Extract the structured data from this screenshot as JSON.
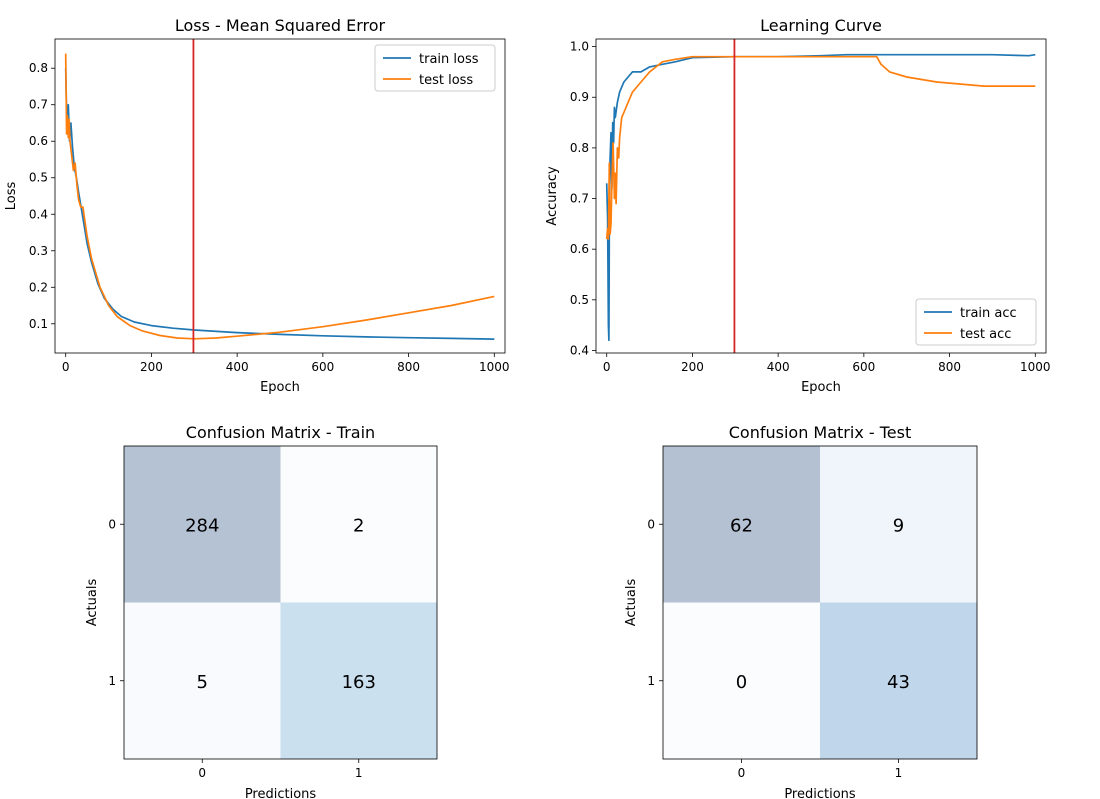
{
  "chart_data": [
    {
      "id": "loss",
      "type": "line",
      "title": "Loss - Mean Squared Error",
      "xlabel": "Epoch",
      "ylabel": "Loss",
      "xlim": [
        -25,
        1025
      ],
      "ylim": [
        0.02,
        0.88
      ],
      "xticks": [
        0,
        200,
        400,
        600,
        800,
        1000
      ],
      "yticks": [
        0.1,
        0.2,
        0.3,
        0.4,
        0.5,
        0.6,
        0.7,
        0.8
      ],
      "grid": false,
      "legend": "upper right",
      "vline": {
        "x": 298,
        "color": "#d62728"
      },
      "series": [
        {
          "name": "train loss",
          "color": "#1f77b4",
          "x": [
            0,
            3,
            6,
            9,
            12,
            16,
            20,
            25,
            30,
            40,
            50,
            60,
            75,
            90,
            110,
            130,
            160,
            200,
            250,
            300,
            400,
            500,
            600,
            700,
            800,
            900,
            1000
          ],
          "y": [
            0.8,
            0.62,
            0.7,
            0.6,
            0.65,
            0.58,
            0.53,
            0.5,
            0.46,
            0.39,
            0.32,
            0.27,
            0.21,
            0.17,
            0.14,
            0.12,
            0.105,
            0.095,
            0.088,
            0.083,
            0.076,
            0.071,
            0.067,
            0.064,
            0.062,
            0.06,
            0.058
          ]
        },
        {
          "name": "test loss",
          "color": "#ff7f0e",
          "x": [
            0,
            2,
            4,
            6,
            8,
            10,
            14,
            18,
            22,
            26,
            30,
            35,
            40,
            50,
            60,
            70,
            80,
            100,
            120,
            150,
            180,
            220,
            260,
            300,
            350,
            400,
            500,
            600,
            700,
            800,
            900,
            1000
          ],
          "y": [
            0.84,
            0.62,
            0.67,
            0.61,
            0.66,
            0.6,
            0.56,
            0.52,
            0.54,
            0.48,
            0.44,
            0.42,
            0.42,
            0.34,
            0.28,
            0.24,
            0.2,
            0.15,
            0.12,
            0.095,
            0.08,
            0.068,
            0.061,
            0.059,
            0.061,
            0.066,
            0.077,
            0.092,
            0.11,
            0.13,
            0.15,
            0.175
          ]
        }
      ]
    },
    {
      "id": "acc",
      "type": "line",
      "title": "Learning Curve",
      "xlabel": "Epoch",
      "ylabel": "Accuracy",
      "xlim": [
        -25,
        1025
      ],
      "ylim": [
        0.395,
        1.015
      ],
      "xticks": [
        0,
        200,
        400,
        600,
        800,
        1000
      ],
      "yticks": [
        0.4,
        0.5,
        0.6,
        0.7,
        0.8,
        0.9,
        1.0
      ],
      "grid": false,
      "legend": "lower right",
      "vline": {
        "x": 298,
        "color": "#d62728"
      },
      "series": [
        {
          "name": "train acc",
          "color": "#1f77b4",
          "x": [
            0,
            2,
            4,
            5,
            6,
            8,
            10,
            12,
            14,
            16,
            18,
            20,
            25,
            30,
            35,
            40,
            50,
            60,
            80,
            100,
            130,
            160,
            200,
            300,
            400,
            500,
            560,
            700,
            800,
            900,
            985,
            1000
          ],
          "y": [
            0.73,
            0.66,
            0.45,
            0.42,
            0.62,
            0.78,
            0.83,
            0.72,
            0.85,
            0.81,
            0.88,
            0.86,
            0.89,
            0.91,
            0.92,
            0.93,
            0.94,
            0.95,
            0.95,
            0.96,
            0.965,
            0.97,
            0.978,
            0.98,
            0.98,
            0.982,
            0.984,
            0.984,
            0.984,
            0.984,
            0.982,
            0.984
          ]
        },
        {
          "name": "test acc",
          "color": "#ff7f0e",
          "x": [
            0,
            2,
            4,
            6,
            8,
            10,
            12,
            15,
            18,
            20,
            22,
            25,
            28,
            30,
            35,
            40,
            50,
            60,
            80,
            100,
            130,
            160,
            200,
            300,
            400,
            500,
            600,
            630,
            640,
            660,
            700,
            770,
            880,
            1000
          ],
          "y": [
            0.62,
            0.64,
            0.62,
            0.77,
            0.63,
            0.65,
            0.73,
            0.81,
            0.7,
            0.75,
            0.69,
            0.8,
            0.78,
            0.82,
            0.86,
            0.87,
            0.89,
            0.91,
            0.93,
            0.95,
            0.97,
            0.975,
            0.98,
            0.98,
            0.98,
            0.98,
            0.98,
            0.98,
            0.965,
            0.95,
            0.94,
            0.93,
            0.922,
            0.922
          ]
        }
      ]
    },
    {
      "id": "cm_train",
      "type": "heatmap",
      "title": "Confusion Matrix - Train",
      "xlabel": "Predictions",
      "ylabel": "Actuals",
      "xticklabels": [
        "0",
        "1"
      ],
      "yticklabels": [
        "0",
        "1"
      ],
      "matrix": [
        [
          284,
          2
        ],
        [
          5,
          163
        ]
      ],
      "colors": [
        [
          "#b5c2d4",
          "#fbfcfe"
        ],
        [
          "#f8fafd",
          "#cae0ef"
        ]
      ]
    },
    {
      "id": "cm_test",
      "type": "heatmap",
      "title": "Confusion Matrix - Test",
      "xlabel": "Predictions",
      "ylabel": "Actuals",
      "xticklabels": [
        "0",
        "1"
      ],
      "yticklabels": [
        "0",
        "1"
      ],
      "matrix": [
        [
          62,
          9
        ],
        [
          0,
          43
        ]
      ],
      "colors": [
        [
          "#b4c1d3",
          "#f0f5fb"
        ],
        [
          "#fbfcfe",
          "#c0d6ea"
        ]
      ]
    }
  ]
}
